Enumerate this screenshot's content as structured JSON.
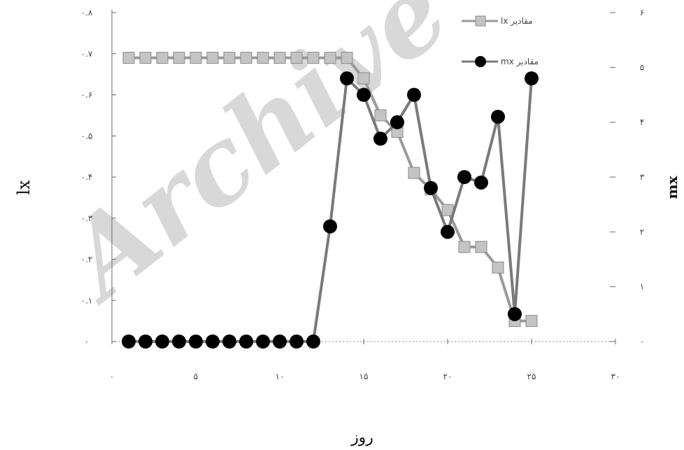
{
  "chart_data": {
    "type": "line",
    "xlabel": "روز",
    "ylabel_left": "lx",
    "ylabel_right": "mx",
    "xlim": [
      0,
      30
    ],
    "ylim_left": [
      0,
      0.8
    ],
    "ylim_right": [
      0,
      6
    ],
    "x_ticks": [
      0,
      5,
      10,
      15,
      20,
      25,
      30
    ],
    "x_tick_labels": [
      "۰",
      "۵",
      "۱۰",
      "۱۵",
      "۲۰",
      "۲۵",
      "۳۰"
    ],
    "y_left_ticks": [
      0,
      0.1,
      0.2,
      0.3,
      0.4,
      0.5,
      0.6,
      0.7,
      0.8
    ],
    "y_left_tick_labels": [
      "۰",
      "۰.۱",
      "۰.۲",
      "۰.۳",
      "۰.۴",
      "۰.۵",
      "۰.۶",
      "۰.۷",
      "۰.۸"
    ],
    "y_right_ticks": [
      0,
      1,
      2,
      3,
      4,
      5,
      6
    ],
    "y_right_tick_labels": [
      "۰",
      "۱",
      "۲",
      "۳",
      "۴",
      "۵",
      "۶"
    ],
    "series": [
      {
        "name": "lx مقادیر",
        "axis": "left",
        "marker": "square",
        "color": "#9a9a9a",
        "marker_fill": "#c4c4c4",
        "x": [
          1,
          2,
          3,
          4,
          5,
          6,
          7,
          8,
          9,
          10,
          11,
          12,
          13,
          14,
          15,
          16,
          17,
          18,
          19,
          20,
          21,
          22,
          23,
          24,
          25
        ],
        "y": [
          0.69,
          0.69,
          0.69,
          0.69,
          0.69,
          0.69,
          0.69,
          0.69,
          0.69,
          0.69,
          0.69,
          0.69,
          0.69,
          0.69,
          0.64,
          0.55,
          0.51,
          0.41,
          0.37,
          0.32,
          0.23,
          0.23,
          0.18,
          0.05,
          0.05
        ]
      },
      {
        "name": "mx مقادیر",
        "axis": "right",
        "marker": "circle",
        "color": "#7a7a7a",
        "marker_fill": "#000000",
        "x": [
          1,
          2,
          3,
          4,
          5,
          6,
          7,
          8,
          9,
          10,
          11,
          12,
          13,
          14,
          15,
          16,
          17,
          18,
          19,
          20,
          21,
          22,
          23,
          24,
          25
        ],
        "y": [
          0,
          0,
          0,
          0,
          0,
          0,
          0,
          0,
          0,
          0,
          0,
          0,
          2.1,
          4.8,
          4.5,
          3.7,
          4.0,
          4.5,
          2.8,
          2.0,
          3.0,
          2.9,
          4.1,
          0.5,
          4.8
        ]
      }
    ],
    "legend_position": "top-right"
  },
  "watermark": "Archive",
  "colors": {
    "axis": "#666666",
    "grid_dotted": "#888888",
    "watermark": "#d2d2d2"
  }
}
